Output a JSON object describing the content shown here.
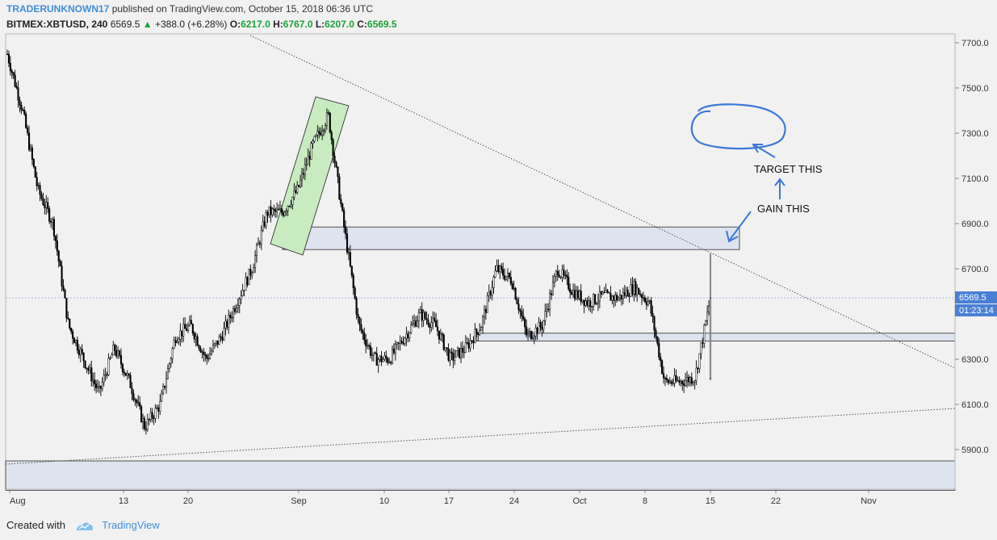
{
  "header": {
    "author": "TRADERUNKNOWN17",
    "published_text": "published on TradingView.com, October 15, 2018 06:36 UTC",
    "symbol": "BITMEX:XBTUSD, 240",
    "last": "6569.5",
    "change_arrow": "▲",
    "change": "+388.0 (+6.28%)",
    "open_label": "O:",
    "open": "6217.0",
    "high_label": "H:",
    "high": "6767.0",
    "low_label": "L:",
    "low": "6207.0",
    "close_label": "C:",
    "close": "6569.5"
  },
  "footer": {
    "created_with": "Created with",
    "brand": "TradingView"
  },
  "colors": {
    "candle": "#000000",
    "zone_fill": "#dde4f0",
    "channel_fill": "#c8ecc0",
    "annotation": "#3a78d8",
    "price_tag": "#4a7fd4",
    "up": "#1aa33a"
  },
  "chart_data": {
    "type": "candlestick",
    "symbol": "BITMEX:XBTUSD",
    "interval": "240",
    "ylim": [
      5720,
      7780
    ],
    "x_tick_labels": [
      "Aug",
      "13",
      "20",
      "Sep",
      "10",
      "17",
      "24",
      "Oct",
      "8",
      "15",
      "22",
      "Nov"
    ],
    "y_tick_labels": [
      "7700.0",
      "7500.0",
      "7300.0",
      "7100.0",
      "6900.0",
      "6700.0",
      "6300.0",
      "6100.0",
      "5900.0"
    ],
    "y_tick_values": [
      7700,
      7500,
      7300,
      7100,
      6900,
      6700,
      6300,
      6100,
      5900
    ],
    "last_price_label": "6569.5",
    "countdown_label": "01:23:14",
    "price_path": [
      [
        "Aug",
        7650
      ],
      [
        "Aug 2",
        7400
      ],
      [
        "Aug 4",
        7050
      ],
      [
        "Aug 6",
        6900
      ],
      [
        "Aug 8",
        6450
      ],
      [
        "Aug 9",
        6300
      ],
      [
        "Aug 10",
        6150
      ],
      [
        "Aug 11",
        6350
      ],
      [
        "Aug 12",
        6200
      ],
      [
        "Aug 13",
        6000
      ],
      [
        "Aug 14",
        6100
      ],
      [
        "Aug 16",
        6400
      ],
      [
        "Aug 18",
        6450
      ],
      [
        "Aug 20",
        6300
      ],
      [
        "Aug 22",
        6400
      ],
      [
        "Aug 25",
        6550
      ],
      [
        "Aug 27",
        6700
      ],
      [
        "Aug 29",
        6950
      ],
      [
        "Aug 31",
        6950
      ],
      [
        "Sep 1",
        7050
      ],
      [
        "Sep 3",
        7250
      ],
      [
        "Sep 5",
        7380
      ],
      [
        "Sep 6",
        6900
      ],
      [
        "Sep 7",
        6450
      ],
      [
        "Sep 9",
        6300
      ],
      [
        "Sep 10",
        6300
      ],
      [
        "Sep 12",
        6400
      ],
      [
        "Sep 14",
        6500
      ],
      [
        "Sep 16",
        6450
      ],
      [
        "Sep 18",
        6300
      ],
      [
        "Sep 19",
        6350
      ],
      [
        "Sep 20",
        6450
      ],
      [
        "Sep 21",
        6700
      ],
      [
        "Sep 23",
        6650
      ],
      [
        "Sep 24",
        6400
      ],
      [
        "Sep 26",
        6450
      ],
      [
        "Sep 28",
        6700
      ],
      [
        "Sep 30",
        6600
      ],
      [
        "Oct 2",
        6550
      ],
      [
        "Oct 4",
        6580
      ],
      [
        "Oct 6",
        6570
      ],
      [
        "Oct 8",
        6620
      ],
      [
        "Oct 10",
        6550
      ],
      [
        "Oct 11",
        6200
      ],
      [
        "Oct 12",
        6200
      ],
      [
        "Oct 14",
        6220
      ],
      [
        "Oct 15",
        6569.5
      ]
    ],
    "ohlc_last": {
      "open": 6217.0,
      "high": 6767.0,
      "low": 6207.0,
      "close": 6569.5
    },
    "zones": [
      {
        "from": 6785,
        "to": 6885
      },
      {
        "from": 6380,
        "to": 6415
      },
      {
        "from": 5720,
        "to": 5850
      }
    ],
    "annotations": [
      "TARGET THIS",
      "GAIN THIS"
    ],
    "grid": false,
    "legend": "none"
  }
}
